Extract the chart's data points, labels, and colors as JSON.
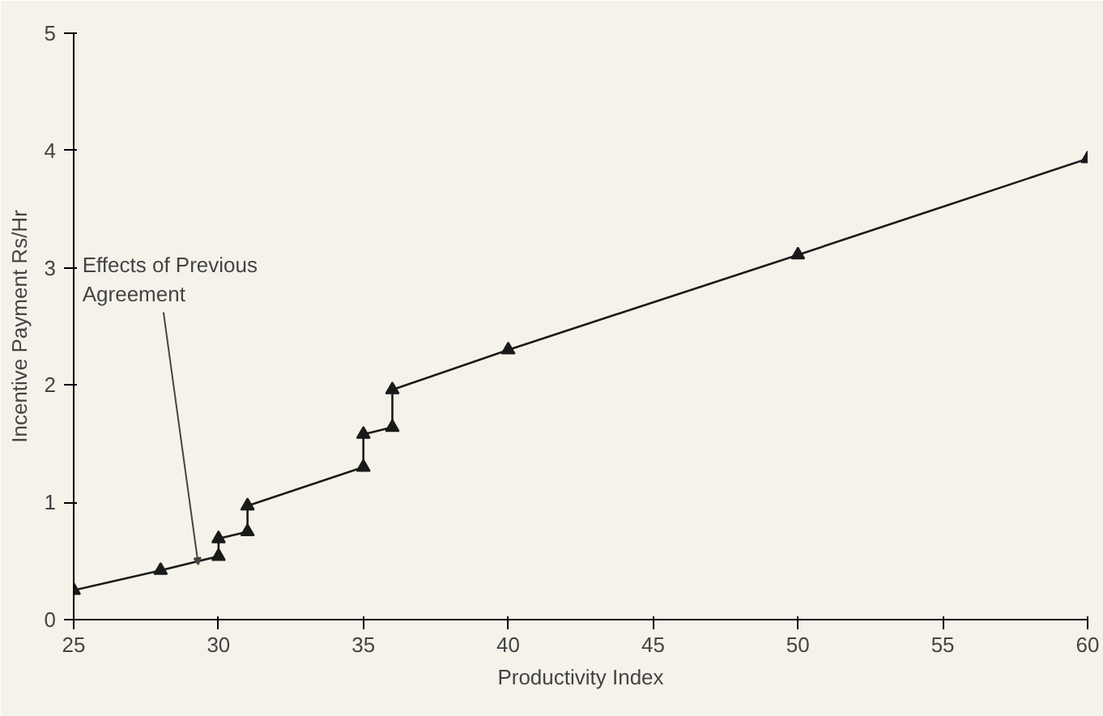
{
  "chart_data": {
    "type": "line",
    "xlabel": "Productivity Index",
    "ylabel": "Incentive Payment Rs/Hr",
    "x": [
      25,
      28,
      30,
      30,
      31,
      31,
      35,
      35,
      36,
      36,
      40,
      50,
      60
    ],
    "series": [
      {
        "color": "#1a1a1a",
        "values": [
          0.25,
          0.42,
          0.54,
          0.69,
          0.75,
          0.97,
          1.3,
          1.58,
          1.64,
          1.96,
          2.3,
          3.11,
          3.93
        ]
      }
    ],
    "xlim": [
      25,
      60
    ],
    "ylim": [
      0,
      5
    ],
    "xticks": [
      25,
      30,
      35,
      40,
      45,
      50,
      55,
      60
    ],
    "yticks": [
      0,
      1,
      2,
      3,
      4,
      5
    ],
    "marker": "triangle",
    "line_style": "solid",
    "grid": false,
    "annotations": [
      {
        "text": "Effects of Previous\nAgreement",
        "x": 29.3,
        "y": 0.47
      }
    ]
  }
}
